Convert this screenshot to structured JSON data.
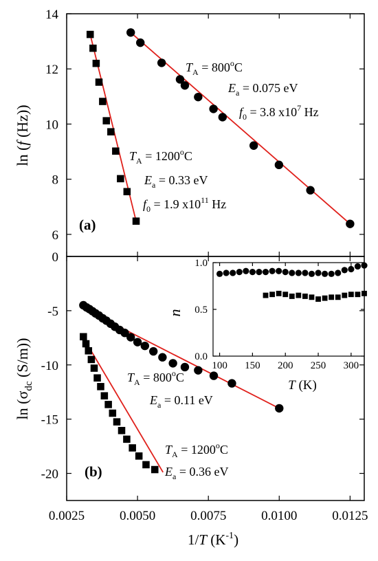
{
  "figure": {
    "x_axis_label_main": "1/",
    "x_axis_label_var": "T",
    "x_axis_label_unit": " (K",
    "x_axis_label_exp": "-1",
    "x_axis_label_close": ")"
  },
  "chart_data": [
    {
      "id": "panel-a",
      "type": "scatter",
      "panel_label": "(a)",
      "ylabel": "ln (f (Hz))",
      "ylabel_parts": {
        "pre": "ln (",
        "var": "f",
        "post": " (Hz))"
      },
      "xlim": [
        0.0025,
        0.013
      ],
      "ylim": [
        5.2,
        14
      ],
      "x_ticks": [
        "0.0025",
        "0.0050",
        "0.0075",
        "0.0100",
        "0.0125"
      ],
      "y_ticks": [
        6,
        8,
        10,
        12,
        14
      ],
      "series": [
        {
          "marker": "circle",
          "color": "#000000",
          "points": [
            [
              0.00476,
              13.32
            ],
            [
              0.0051,
              12.95
            ],
            [
              0.00585,
              12.22
            ],
            [
              0.0065,
              11.62
            ],
            [
              0.00667,
              11.4
            ],
            [
              0.00714,
              10.98
            ],
            [
              0.00768,
              10.55
            ],
            [
              0.008,
              10.25
            ],
            [
              0.0091,
              9.22
            ],
            [
              0.00999,
              8.52
            ],
            [
              0.0111,
              7.6
            ],
            [
              0.0125,
              6.38
            ]
          ],
          "fit": [
            [
              0.00476,
              13.32
            ],
            [
              0.0125,
              6.38
            ]
          ],
          "annotation": {
            "T_A": "800",
            "E_a": "0.075 eV",
            "f0_mantissa": "3.8 x10",
            "f0_exp": "7",
            "f0_unit": " Hz"
          }
        },
        {
          "marker": "square",
          "color": "#000000",
          "points": [
            [
              0.00333,
              13.25
            ],
            [
              0.00343,
              12.75
            ],
            [
              0.00354,
              12.2
            ],
            [
              0.00364,
              11.52
            ],
            [
              0.00377,
              10.82
            ],
            [
              0.0039,
              10.12
            ],
            [
              0.00406,
              9.72
            ],
            [
              0.00423,
              9.02
            ],
            [
              0.0044,
              8.02
            ],
            [
              0.00463,
              7.55
            ],
            [
              0.00495,
              6.48
            ]
          ],
          "fit": [
            [
              0.00333,
              13.25
            ],
            [
              0.00495,
              6.48
            ]
          ],
          "annotation": {
            "T_A": "1200",
            "E_a": "0.33 eV",
            "f0_mantissa": "1.9 x10",
            "f0_exp": "11",
            "f0_unit": " Hz"
          }
        }
      ],
      "fit_color": "#e0201b"
    },
    {
      "id": "panel-b",
      "type": "scatter",
      "panel_label": "(b)",
      "ylabel_parts": {
        "pre": "ln (σ",
        "sub": "dc",
        "post": " (S/m))"
      },
      "xlim": [
        0.0025,
        0.013
      ],
      "ylim": [
        -22.5,
        0
      ],
      "x_ticks": [
        "0.0025",
        "0.0050",
        "0.0075",
        "0.0100",
        "0.0125"
      ],
      "y_ticks": [
        "0",
        "-5",
        "-10",
        "-15",
        "-20"
      ],
      "series": [
        {
          "marker": "circle",
          "color": "#000000",
          "points": [
            [
              0.00309,
              -4.5
            ],
            [
              0.0032,
              -4.7
            ],
            [
              0.0033,
              -4.85
            ],
            [
              0.00341,
              -5.05
            ],
            [
              0.00352,
              -5.25
            ],
            [
              0.00364,
              -5.45
            ],
            [
              0.00377,
              -5.7
            ],
            [
              0.0039,
              -5.92
            ],
            [
              0.00405,
              -6.2
            ],
            [
              0.0042,
              -6.48
            ],
            [
              0.00437,
              -6.78
            ],
            [
              0.00455,
              -7.05
            ],
            [
              0.00476,
              -7.45
            ],
            [
              0.005,
              -7.9
            ],
            [
              0.00526,
              -8.25
            ],
            [
              0.00556,
              -8.75
            ],
            [
              0.00588,
              -9.3
            ],
            [
              0.00625,
              -9.85
            ],
            [
              0.00667,
              -10.2
            ],
            [
              0.00714,
              -10.5
            ],
            [
              0.00769,
              -11.0
            ],
            [
              0.00833,
              -11.7
            ],
            [
              0.01,
              -14.0
            ]
          ],
          "fit": [
            [
              0.00309,
              -4.8
            ],
            [
              0.01,
              -14.0
            ]
          ],
          "annotation": {
            "T_A": "800",
            "E_a": "0.11 eV"
          }
        },
        {
          "marker": "square",
          "color": "#000000",
          "points": [
            [
              0.00309,
              -7.4
            ],
            [
              0.00318,
              -8.05
            ],
            [
              0.00327,
              -8.7
            ],
            [
              0.00337,
              -9.5
            ],
            [
              0.00347,
              -10.3
            ],
            [
              0.00358,
              -11.2
            ],
            [
              0.0037,
              -12.0
            ],
            [
              0.00383,
              -12.85
            ],
            [
              0.00397,
              -13.65
            ],
            [
              0.00412,
              -14.45
            ],
            [
              0.00427,
              -15.25
            ],
            [
              0.00444,
              -16.05
            ],
            [
              0.00462,
              -16.85
            ],
            [
              0.00482,
              -17.65
            ],
            [
              0.00505,
              -18.4
            ],
            [
              0.0053,
              -19.2
            ],
            [
              0.00561,
              -19.65
            ]
          ],
          "fit": [
            [
              0.00309,
              -7.5
            ],
            [
              0.0059,
              -19.9
            ]
          ],
          "annotation": {
            "T_A": "1200",
            "E_a": "0.36 eV"
          }
        }
      ],
      "fit_color": "#e0201b"
    },
    {
      "id": "panel-b-inset",
      "type": "scatter",
      "ylabel": "n",
      "xlabel": "T",
      "xlabel_unit": " (K)",
      "xlim": [
        90,
        320
      ],
      "ylim": [
        0,
        1
      ],
      "x_ticks": [
        "100",
        "150",
        "200",
        "250",
        "300"
      ],
      "y_ticks": [
        "0.0",
        "0.5",
        "1.0"
      ],
      "series": [
        {
          "marker": "circle",
          "color": "#000000",
          "points": [
            [
              100,
              0.88
            ],
            [
              110,
              0.89
            ],
            [
              120,
              0.89
            ],
            [
              130,
              0.9
            ],
            [
              140,
              0.91
            ],
            [
              150,
              0.9
            ],
            [
              160,
              0.9
            ],
            [
              170,
              0.9
            ],
            [
              180,
              0.91
            ],
            [
              190,
              0.91
            ],
            [
              200,
              0.9
            ],
            [
              210,
              0.89
            ],
            [
              220,
              0.89
            ],
            [
              230,
              0.89
            ],
            [
              240,
              0.88
            ],
            [
              250,
              0.89
            ],
            [
              260,
              0.88
            ],
            [
              270,
              0.88
            ],
            [
              280,
              0.89
            ],
            [
              290,
              0.92
            ],
            [
              300,
              0.93
            ],
            [
              310,
              0.96
            ],
            [
              320,
              0.97
            ]
          ]
        },
        {
          "marker": "square",
          "color": "#000000",
          "points": [
            [
              170,
              0.65
            ],
            [
              180,
              0.66
            ],
            [
              190,
              0.67
            ],
            [
              200,
              0.66
            ],
            [
              210,
              0.64
            ],
            [
              220,
              0.65
            ],
            [
              230,
              0.64
            ],
            [
              240,
              0.63
            ],
            [
              250,
              0.61
            ],
            [
              260,
              0.62
            ],
            [
              270,
              0.63
            ],
            [
              280,
              0.63
            ],
            [
              290,
              0.65
            ],
            [
              300,
              0.66
            ],
            [
              310,
              0.66
            ],
            [
              320,
              0.67
            ]
          ]
        }
      ]
    }
  ]
}
